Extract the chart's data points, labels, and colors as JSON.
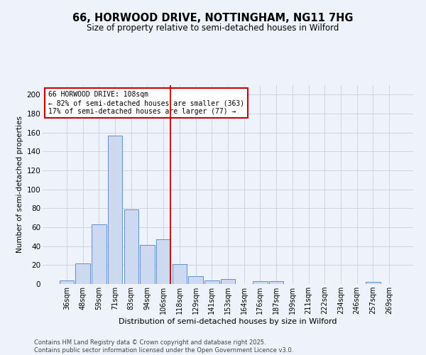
{
  "title1": "66, HORWOOD DRIVE, NOTTINGHAM, NG11 7HG",
  "title2": "Size of property relative to semi-detached houses in Wilford",
  "xlabel": "Distribution of semi-detached houses by size in Wilford",
  "ylabel": "Number of semi-detached properties",
  "bin_labels": [
    "36sqm",
    "48sqm",
    "59sqm",
    "71sqm",
    "83sqm",
    "94sqm",
    "106sqm",
    "118sqm",
    "129sqm",
    "141sqm",
    "153sqm",
    "164sqm",
    "176sqm",
    "187sqm",
    "199sqm",
    "211sqm",
    "222sqm",
    "234sqm",
    "246sqm",
    "257sqm",
    "269sqm"
  ],
  "bar_values": [
    4,
    22,
    63,
    157,
    79,
    41,
    47,
    21,
    8,
    4,
    5,
    0,
    3,
    3,
    0,
    0,
    0,
    0,
    0,
    2,
    0
  ],
  "bar_color": "#ccd9f0",
  "bar_edge_color": "#6090c8",
  "vline_color": "#cc0000",
  "annotation_box_color": "#cc0000",
  "annotation_box_fill": "#ffffff",
  "annotation_line1": "66 HORWOOD DRIVE: 108sqm",
  "annotation_line2": "← 82% of semi-detached houses are smaller (363)",
  "annotation_line3": "17% of semi-detached houses are larger (77) →",
  "ylim": [
    0,
    210
  ],
  "yticks": [
    0,
    20,
    40,
    60,
    80,
    100,
    120,
    140,
    160,
    180,
    200
  ],
  "grid_color": "#c8cfe0",
  "background_color": "#eef2fb",
  "footer1": "Contains HM Land Registry data © Crown copyright and database right 2025.",
  "footer2": "Contains public sector information licensed under the Open Government Licence v3.0."
}
